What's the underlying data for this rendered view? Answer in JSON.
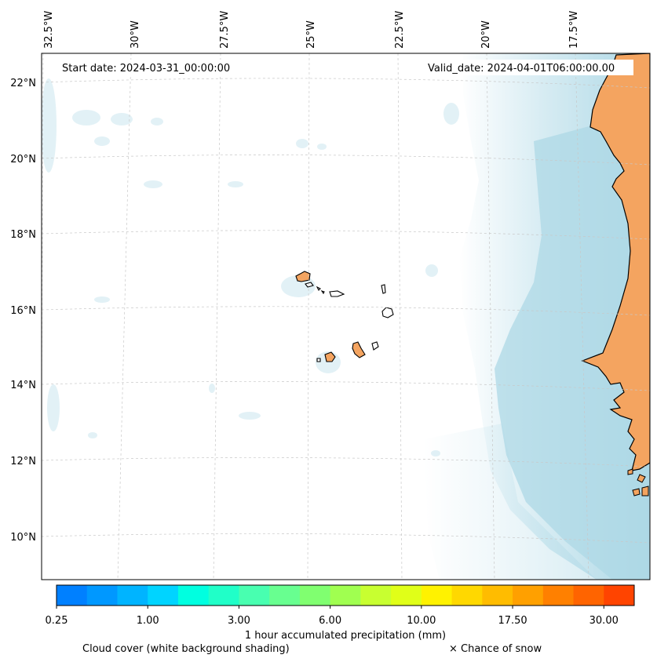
{
  "map": {
    "start_date_label": "Start date: 2024-03-31_00:00:00",
    "valid_date_label": "Valid_date: 2024-04-01T06:00:00.00",
    "longitude_labels": [
      "32.5°W",
      "30°W",
      "27.5°W",
      "25°W",
      "22.5°W",
      "20°W",
      "17.5°W"
    ],
    "latitude_labels": [
      "22°N",
      "20°N",
      "18°N",
      "16°N",
      "14°N",
      "12°N",
      "10°N"
    ],
    "colors": {
      "land": "#f4a460",
      "cloud": "#add8e6",
      "coastline": "#000000",
      "gridline": "#c8c8c8"
    }
  },
  "colorbar": {
    "colors": [
      "#0080ff",
      "#0098ff",
      "#00b4ff",
      "#00d4ff",
      "#00ffe0",
      "#20ffc8",
      "#48ffb0",
      "#68ff90",
      "#80ff70",
      "#a0ff50",
      "#c8ff30",
      "#e0ff18",
      "#fff200",
      "#ffd800",
      "#ffbc00",
      "#ffa000",
      "#ff8000",
      "#ff6400",
      "#ff4400"
    ],
    "tick_labels": [
      "0.25",
      "1.00",
      "3.00",
      "6.00",
      "10.00",
      "17.50",
      "30.00"
    ],
    "title": "1 hour accumulated precipitation (mm)"
  },
  "legend": {
    "cloud_cover": "Cloud cover (white background shading)",
    "snow": "× Chance of snow"
  }
}
